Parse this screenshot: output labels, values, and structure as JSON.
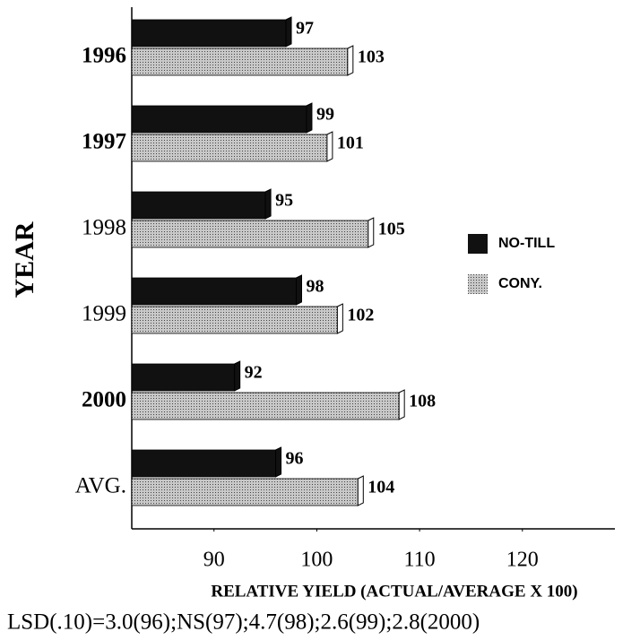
{
  "chart_data": {
    "type": "bar",
    "orientation": "horizontal",
    "categories": [
      "1996",
      "1997",
      "1998",
      "1999",
      "2000",
      "AVG."
    ],
    "series": [
      {
        "name": "NO-TILL",
        "color": "#111111",
        "values": [
          97,
          99,
          95,
          98,
          92,
          96
        ]
      },
      {
        "name": "CONY.",
        "color": "#a8a8a8",
        "values": [
          103,
          101,
          105,
          102,
          108,
          104
        ]
      }
    ],
    "y_label": "YEAR",
    "x_label": "RELATIVE YIELD (ACTUAL/AVERAGE X 100)",
    "footnote": "LSD(.10)=3.0(96);NS(97);4.7(98);2.6(99);2.8(2000)",
    "xlim": [
      82,
      129
    ],
    "xticks": [
      90,
      100,
      110,
      120
    ],
    "legend": "right"
  }
}
